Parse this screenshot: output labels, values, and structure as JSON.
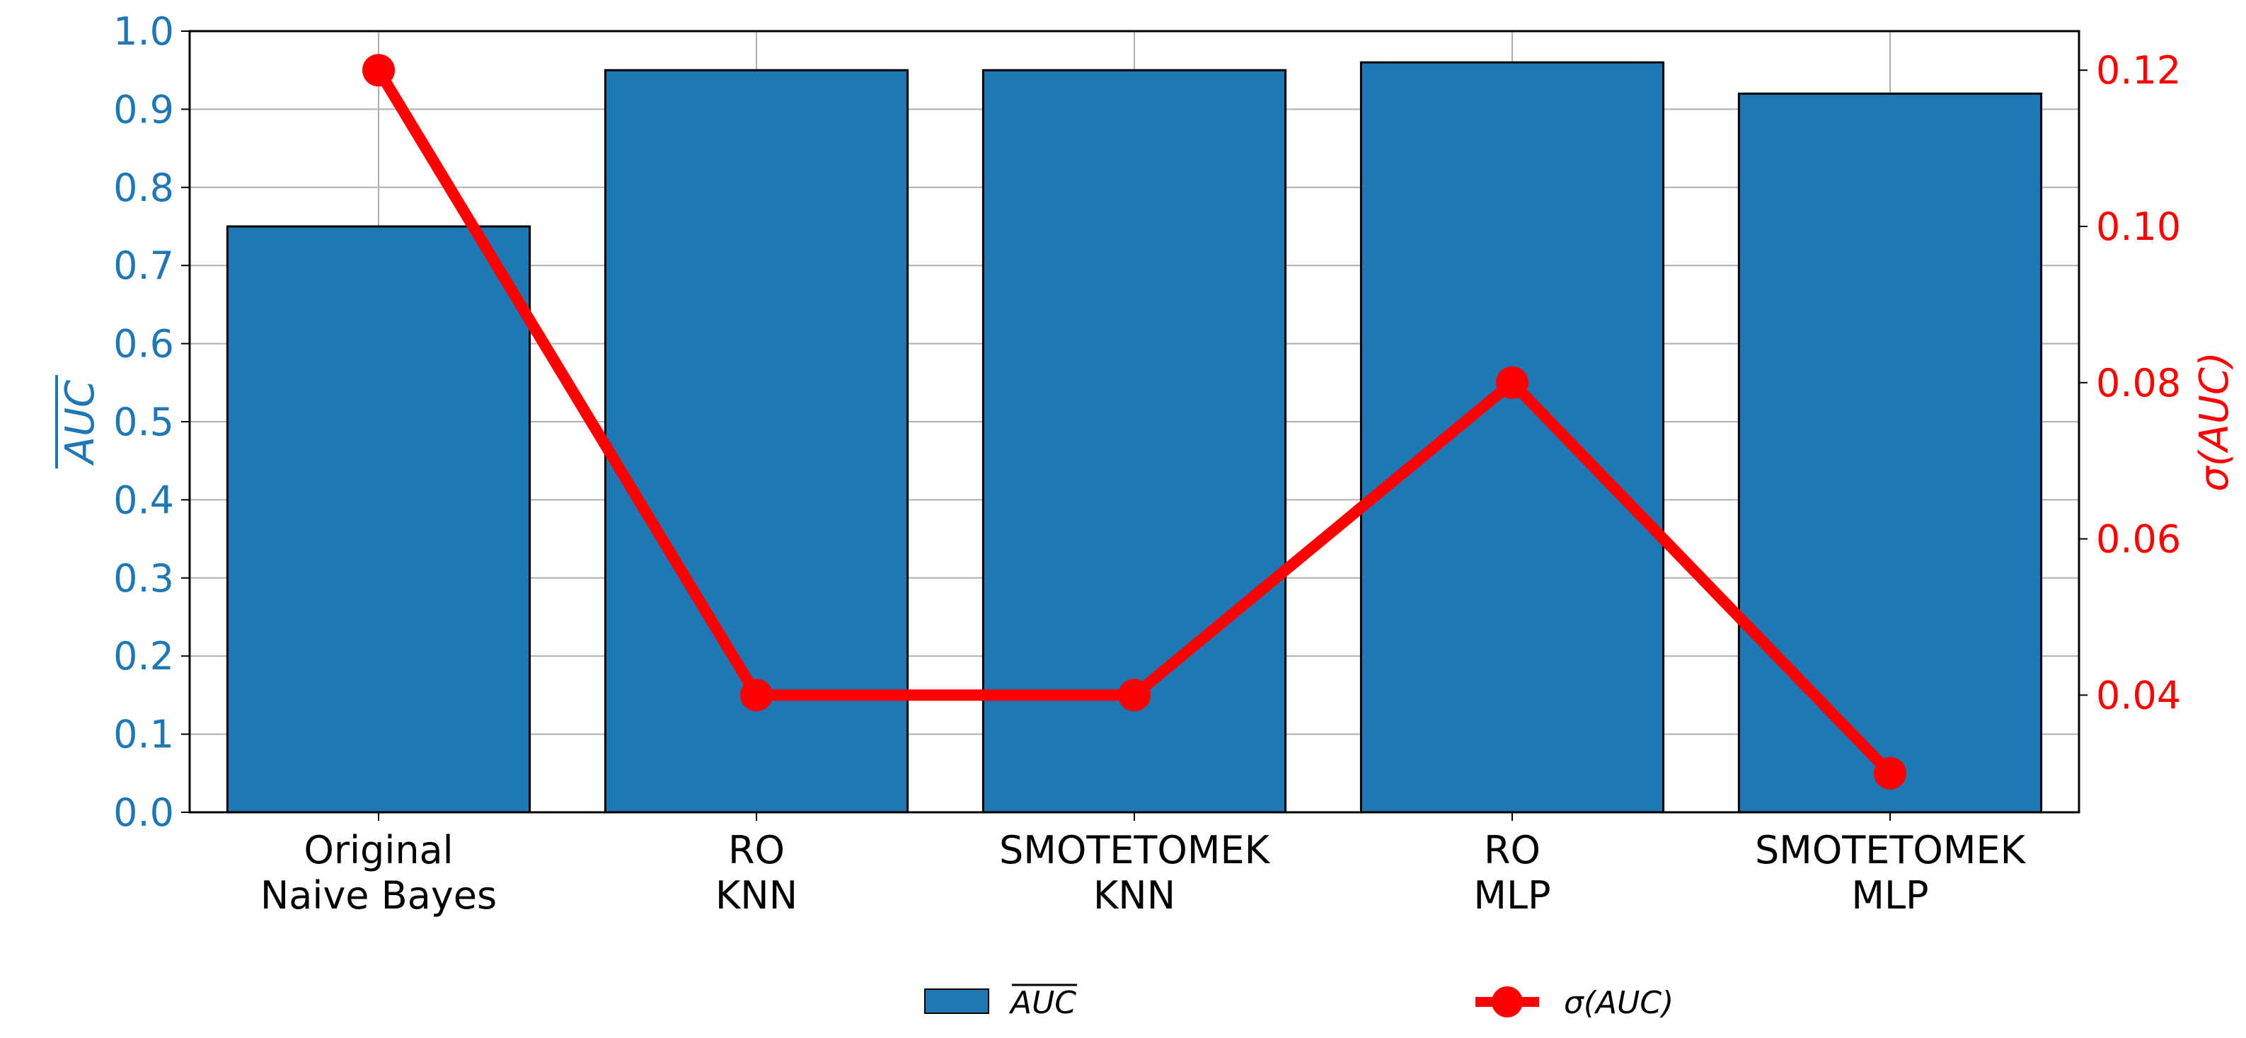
{
  "chart_data": {
    "type": "bar",
    "categories": [
      [
        "Original",
        "Naive Bayes"
      ],
      [
        "RO",
        "KNN"
      ],
      [
        "SMOTETOMEK",
        "KNN"
      ],
      [
        "RO",
        "MLP"
      ],
      [
        "SMOTETOMEK",
        "MLP"
      ]
    ],
    "series": [
      {
        "name": "AUC",
        "type": "bar",
        "axis": "left",
        "values": [
          0.75,
          0.95,
          0.95,
          0.96,
          0.92
        ]
      },
      {
        "name": "σ(AUC)",
        "type": "line",
        "axis": "right",
        "values": [
          0.12,
          0.04,
          0.04,
          0.08,
          0.03
        ]
      }
    ],
    "ylabel_left": "AUC",
    "ylabel_right": "σ(AUC)",
    "ylim_left": [
      0,
      1.0
    ],
    "ylim_right": [
      0.025,
      0.125
    ],
    "yticks_left": [
      "0.0",
      "0.1",
      "0.2",
      "0.3",
      "0.4",
      "0.5",
      "0.6",
      "0.7",
      "0.8",
      "0.9",
      "1.0"
    ],
    "yticks_right": [
      "0.04",
      "0.06",
      "0.08",
      "0.10",
      "0.12"
    ],
    "grid": true,
    "legend_placement": "bottom-center",
    "colors": {
      "bar": "#1f77b4",
      "line": "#ff0000"
    }
  }
}
